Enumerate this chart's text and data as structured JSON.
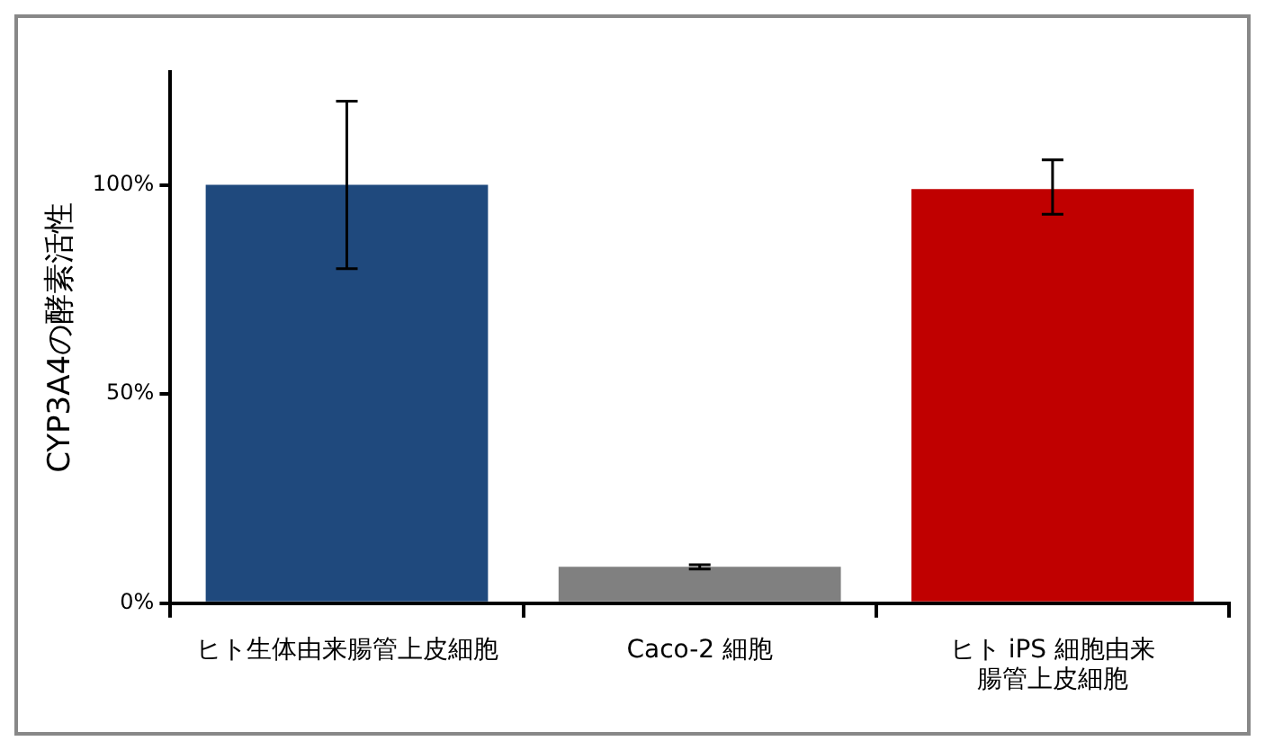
{
  "chart_data": {
    "type": "bar",
    "ylabel": "CYP3A4の酵素活性",
    "categories": [
      "ヒト生体由来腸管上皮細胞",
      "Caco-2 細胞",
      "ヒト iPS 細胞由来腸管上皮細胞"
    ],
    "values": [
      100,
      8.7,
      99
    ],
    "colors": [
      "#1f497d",
      "#808080",
      "#c00000"
    ],
    "errors": [
      20,
      0.5,
      [
        93,
        106
      ]
    ],
    "ylim": [
      0,
      127
    ],
    "yticks": [
      {
        "value": 0,
        "label": "0%"
      },
      {
        "value": 50,
        "label": "50%"
      },
      {
        "value": 100,
        "label": "100%"
      }
    ],
    "grid": false,
    "legend": false
  }
}
